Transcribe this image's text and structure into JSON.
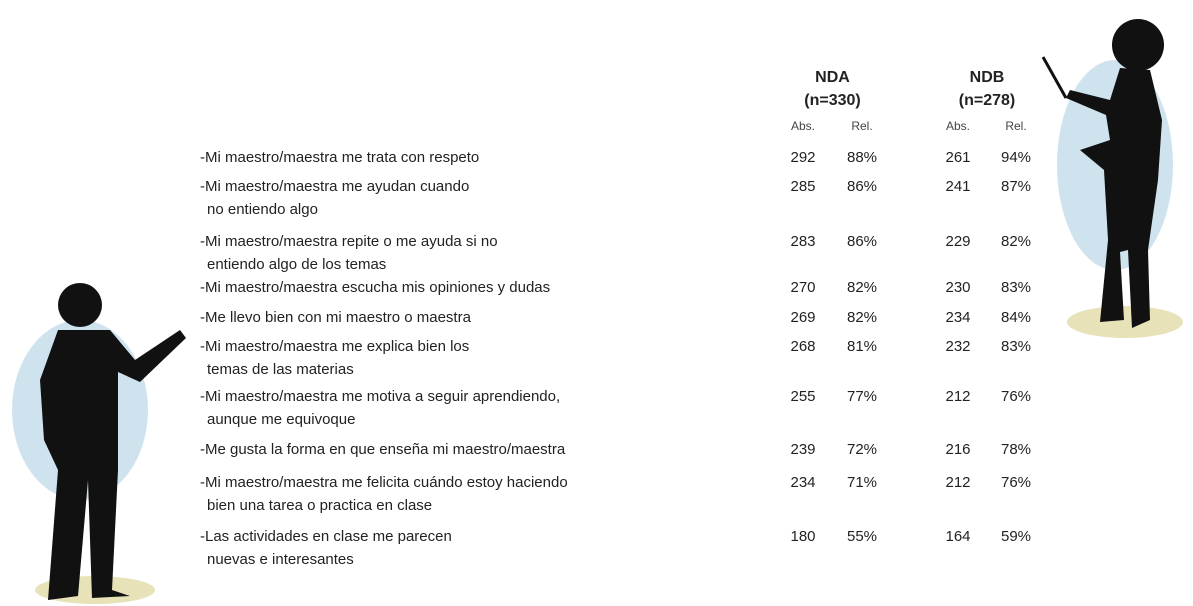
{
  "table": {
    "groups": [
      {
        "name": "NDA",
        "n": "(n=330)",
        "columns": [
          "Abs.",
          "Rel."
        ]
      },
      {
        "name": "NDB",
        "n": "(n=278)",
        "columns": [
          "Abs.",
          "Rel."
        ]
      }
    ],
    "rows": [
      {
        "item": [
          "-Mi maestro/maestra me trata con respeto"
        ],
        "values": [
          [
            "292",
            "88%"
          ],
          [
            "261",
            "94%"
          ]
        ]
      },
      {
        "item": [
          "-Mi maestro/maestra me ayudan cuando",
          "no entiendo algo"
        ],
        "values": [
          [
            "285",
            "86%"
          ],
          [
            "241",
            "87%"
          ]
        ]
      },
      {
        "item": [
          "-Mi maestro/maestra repite o me ayuda si no",
          "entiendo algo de los temas"
        ],
        "values": [
          [
            "283",
            "86%"
          ],
          [
            "229",
            "82%"
          ]
        ]
      },
      {
        "item": [
          "-Mi maestro/maestra escucha mis opiniones y dudas"
        ],
        "values": [
          [
            "270",
            "82%"
          ],
          [
            "230",
            "83%"
          ]
        ]
      },
      {
        "item": [
          "-Me llevo bien con mi maestro o maestra"
        ],
        "values": [
          [
            "269",
            "82%"
          ],
          [
            "234",
            "84%"
          ]
        ]
      },
      {
        "item": [
          "-Mi maestro/maestra me explica bien los",
          "temas de las materias"
        ],
        "values": [
          [
            "268",
            "81%"
          ],
          [
            "232",
            "83%"
          ]
        ]
      },
      {
        "item": [
          "-Mi maestro/maestra me motiva a seguir aprendiendo,",
          "aunque me equivoque"
        ],
        "values": [
          [
            "255",
            "77%"
          ],
          [
            "212",
            "76%"
          ]
        ]
      },
      {
        "item": [
          "-Me gusta la forma en que enseña mi maestro/maestra"
        ],
        "values": [
          [
            "239",
            "72%"
          ],
          [
            "216",
            "78%"
          ]
        ]
      },
      {
        "item": [
          "-Mi maestro/maestra me felicita cuándo estoy haciendo",
          "bien una tarea o practica en clase"
        ],
        "values": [
          [
            "234",
            "71%"
          ],
          [
            "212",
            "76%"
          ]
        ]
      },
      {
        "item": [
          "-Las actividades en clase me parecen",
          "nuevas e interesantes"
        ],
        "values": [
          [
            "180",
            "55%"
          ],
          [
            "164",
            "59%"
          ]
        ]
      }
    ]
  }
}
